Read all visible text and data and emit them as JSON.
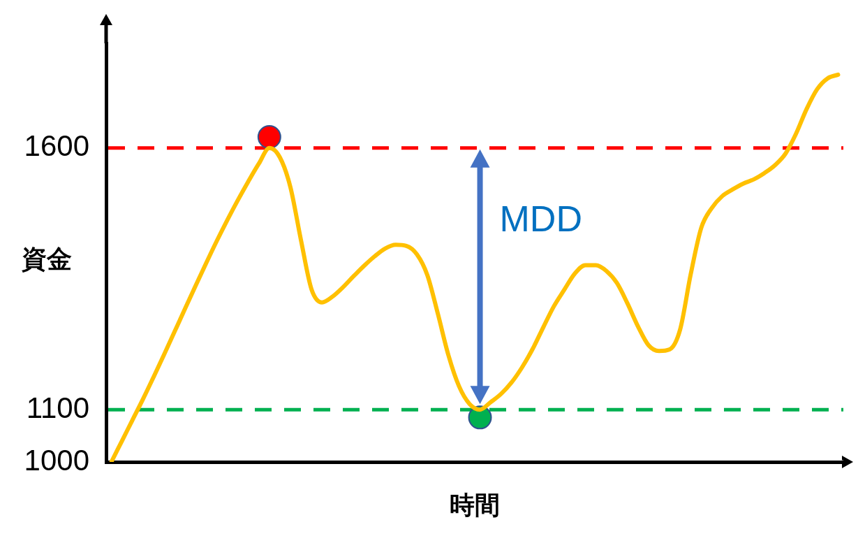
{
  "chart_data": {
    "type": "line",
    "xlabel": "時間",
    "ylabel": "資金",
    "categories": [
      null,
      null,
      null,
      null,
      null,
      null,
      null,
      null,
      null,
      null,
      null,
      null,
      null,
      null,
      null,
      null,
      null,
      null,
      null,
      null,
      null,
      null,
      null,
      null,
      null,
      null,
      null,
      null,
      null,
      null,
      null,
      null,
      null,
      null,
      null,
      null,
      null,
      null,
      null,
      null,
      null,
      null,
      null,
      null,
      null,
      null,
      null,
      null,
      null,
      null,
      null,
      null,
      null,
      null,
      null,
      null,
      null,
      null,
      null,
      null,
      null,
      null,
      null,
      null,
      null,
      null,
      null,
      null,
      null,
      null
    ],
    "series": [
      {
        "color": "#ffc000",
        "values": [
          1000,
          1040,
          1080,
          1120,
          1162,
          1205,
          1249,
          1293,
          1337,
          1380,
          1422,
          1462,
          1500,
          1536,
          1570,
          1600,
          1582,
          1525,
          1424,
          1330,
          1305,
          1316,
          1334,
          1355,
          1375,
          1393,
          1408,
          1415,
          1413,
          1397,
          1357,
          1283,
          1204,
          1145,
          1111,
          1100,
          1114,
          1130,
          1152,
          1181,
          1216,
          1257,
          1297,
          1329,
          1360,
          1376,
          1376,
          1365,
          1342,
          1303,
          1259,
          1223,
          1212,
          1215,
          1253,
          1358,
          1447,
          1485,
          1508,
          1521,
          1532,
          1540,
          1552,
          1567,
          1589,
          1627,
          1674,
          1712,
          1733,
          1740
        ]
      },
      {
        "type": "scatter",
        "marker": "circle",
        "color": "#ff0000",
        "values": [
          null,
          null,
          null,
          null,
          null,
          null,
          null,
          null,
          null,
          null,
          null,
          null,
          null,
          null,
          null,
          1621,
          null,
          null,
          null,
          null,
          null,
          null,
          null,
          null,
          null,
          null,
          null,
          null,
          null,
          null,
          null,
          null,
          null,
          null,
          null,
          null,
          null,
          null,
          null,
          null,
          null,
          null,
          null,
          null,
          null,
          null,
          null,
          null,
          null,
          null,
          null,
          null,
          null,
          null,
          null,
          null,
          null,
          null,
          null,
          null,
          null,
          null,
          null,
          null,
          null,
          null,
          null,
          null,
          null,
          null
        ]
      },
      {
        "type": "scatter",
        "marker": "circle",
        "color": "#00b050",
        "values": [
          null,
          null,
          null,
          null,
          null,
          null,
          null,
          null,
          null,
          null,
          null,
          null,
          null,
          null,
          null,
          null,
          null,
          null,
          null,
          null,
          null,
          null,
          null,
          null,
          null,
          null,
          null,
          null,
          null,
          null,
          null,
          null,
          null,
          null,
          null,
          1085,
          null,
          null,
          null,
          null,
          null,
          null,
          null,
          null,
          null,
          null,
          null,
          null,
          null,
          null,
          null,
          null,
          null,
          null,
          null,
          null,
          null,
          null,
          null,
          null,
          null,
          null,
          null,
          null,
          null,
          null,
          null,
          null,
          null,
          null
        ]
      }
    ],
    "ylim": [
      1000,
      1800
    ],
    "yticks": [
      1000,
      1100,
      1600
    ],
    "tick_labels": "y",
    "ref_lines": [
      {
        "axis": "y",
        "value": 1600,
        "color": "#ff0000",
        "line_style": "dashed"
      },
      {
        "axis": "y",
        "value": 1100,
        "color": "#00b050",
        "line_style": "dashed"
      }
    ],
    "annotations": [
      "MDD"
    ]
  }
}
